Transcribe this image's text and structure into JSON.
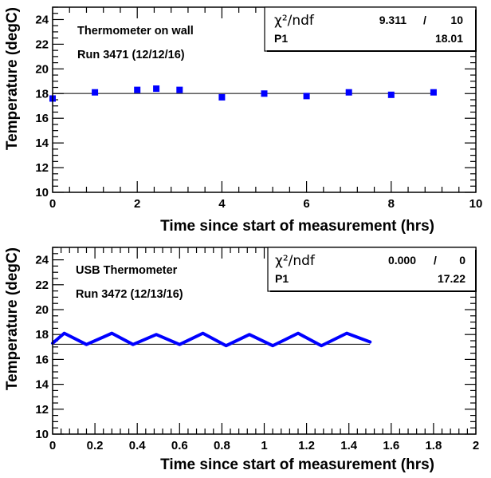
{
  "chart_data": [
    {
      "type": "scatter",
      "title": "",
      "annotations": [
        "Thermometer on wall",
        "Run 3471 (12/12/16)"
      ],
      "xlabel": "Time since start of measurement (hrs)",
      "ylabel": "Temperature (degC)",
      "xlim": [
        0,
        10
      ],
      "ylim": [
        10,
        25
      ],
      "xticks": [
        "0",
        "2",
        "4",
        "6",
        "8",
        "10"
      ],
      "yticks": [
        "10",
        "12",
        "14",
        "16",
        "18",
        "20",
        "22",
        "24"
      ],
      "marker_color": "#0000ff",
      "x": [
        0,
        1,
        2,
        2.45,
        3,
        4,
        5,
        6,
        7,
        8,
        9
      ],
      "y": [
        17.6,
        18.1,
        18.3,
        18.4,
        18.3,
        17.7,
        18.0,
        17.8,
        18.1,
        17.9,
        18.1
      ],
      "fit": {
        "type": "constant",
        "value": 18.01
      },
      "stats": {
        "chi2_label": "χ²/ndf",
        "chi2": "9.311",
        "sep": "/",
        "ndf": "10",
        "p1_label": "P1",
        "p1": "18.01"
      }
    },
    {
      "type": "line",
      "title": "",
      "annotations": [
        "USB Thermometer",
        "Run 3472 (12/13/16)"
      ],
      "xlabel": "Time since start of measurement (hrs)",
      "ylabel": "Temperature (degC)",
      "xlim": [
        0,
        2
      ],
      "ylim": [
        10,
        25
      ],
      "xticks": [
        "0",
        "0.2",
        "0.4",
        "0.6",
        "0.8",
        "1",
        "1.2",
        "1.4",
        "1.6",
        "1.8",
        "2"
      ],
      "yticks": [
        "10",
        "12",
        "14",
        "16",
        "18",
        "20",
        "22",
        "24"
      ],
      "line_color": "#0000ff",
      "x": [
        0,
        0.055,
        0.16,
        0.28,
        0.38,
        0.49,
        0.6,
        0.71,
        0.82,
        0.93,
        1.04,
        1.16,
        1.27,
        1.39,
        1.5
      ],
      "y": [
        17.3,
        18.1,
        17.2,
        18.1,
        17.2,
        18.0,
        17.2,
        18.1,
        17.1,
        18.0,
        17.1,
        18.1,
        17.1,
        18.1,
        17.4
      ],
      "fit": {
        "type": "constant",
        "value": 17.22
      },
      "stats": {
        "chi2_label": "χ²/ndf",
        "chi2": "0.000",
        "sep": "/",
        "ndf": "0",
        "p1_label": "P1",
        "p1": "17.22"
      }
    }
  ]
}
